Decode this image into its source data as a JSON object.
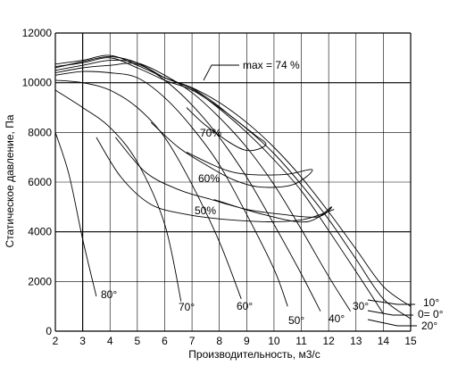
{
  "chart_data": {
    "type": "line",
    "xlabel": "Производительность, м3/с",
    "ylabel": "Статическое давление, Па",
    "xlim": [
      2,
      15
    ],
    "ylim": [
      0,
      12000
    ],
    "x_ticks": [
      2,
      3,
      4,
      5,
      6,
      7,
      8,
      9,
      10,
      11,
      12,
      13,
      14,
      15
    ],
    "y_ticks": [
      0,
      2000,
      4000,
      6000,
      8000,
      10000,
      12000
    ],
    "y_tick_labels": [
      "0",
      "2000",
      "4000",
      "6000",
      "8000",
      "10000",
      "12000"
    ],
    "grid": true,
    "major_gridlines": {
      "x": [
        3
      ],
      "y": [
        4000,
        10000
      ]
    },
    "series": [
      {
        "name": "10°",
        "x": [
          2,
          3,
          4,
          5,
          6,
          7,
          8,
          9,
          10,
          11,
          12,
          13,
          14,
          15
        ],
        "values": [
          10750,
          10900,
          11100,
          10700,
          10200,
          9800,
          9200,
          8400,
          7400,
          6200,
          4800,
          3300,
          1800,
          1000
        ]
      },
      {
        "name": "0= 0°",
        "x": [
          2,
          3,
          4,
          5,
          6,
          7,
          8,
          9,
          10,
          11,
          12,
          13,
          14,
          15
        ],
        "values": [
          10650,
          10800,
          11000,
          10600,
          10100,
          9700,
          9000,
          8150,
          7150,
          5900,
          4500,
          2900,
          1300,
          500
        ]
      },
      {
        "name": "20°",
        "x": [
          2,
          3,
          4,
          5,
          6,
          7,
          8,
          9,
          10,
          11,
          12,
          13,
          14
        ],
        "values": [
          10600,
          10850,
          11050,
          10800,
          10200,
          9750,
          8950,
          8000,
          6900,
          5650,
          4050,
          2400,
          700
        ]
      },
      {
        "name": "30°",
        "x": [
          2,
          3,
          4,
          5,
          6,
          7,
          8,
          9,
          10,
          11,
          12,
          12.8
        ],
        "values": [
          10500,
          10700,
          10900,
          10800,
          10300,
          9600,
          8600,
          7400,
          5900,
          4100,
          2200,
          800
        ]
      },
      {
        "name": "40°",
        "x": [
          2,
          3,
          4,
          5,
          6,
          7,
          8,
          9,
          10,
          11,
          11.7
        ],
        "values": [
          10400,
          10600,
          10700,
          10750,
          10100,
          9100,
          7800,
          6200,
          4300,
          2300,
          800
        ]
      },
      {
        "name": "50°",
        "x": [
          2,
          3,
          4,
          5,
          6,
          7,
          8,
          9,
          10,
          10.5
        ],
        "values": [
          10300,
          10450,
          10400,
          10200,
          9400,
          8200,
          6700,
          4700,
          2500,
          1000
        ]
      },
      {
        "name": "60°",
        "x": [
          2,
          3,
          4,
          5,
          6,
          7,
          8,
          8.8
        ],
        "values": [
          10100,
          10000,
          9700,
          9000,
          7800,
          5900,
          3600,
          1300
        ]
      },
      {
        "name": "70°",
        "x": [
          2,
          3,
          4,
          5,
          6,
          6.6
        ],
        "values": [
          9700,
          9000,
          8200,
          6800,
          4300,
          1200
        ]
      },
      {
        "name": "80°",
        "x": [
          2,
          2.5,
          3,
          3.5
        ],
        "values": [
          8000,
          6300,
          3700,
          1400
        ]
      }
    ],
    "efficiency_curves": [
      {
        "label": "max = 74 %",
        "x": [
          7.0,
          7.8,
          8.6,
          9.3,
          9.7,
          8.9,
          7.6,
          6.8
        ],
        "values": [
          9800,
          9200,
          8500,
          7900,
          7500,
          7300,
          8200,
          9000
        ]
      },
      {
        "label": "70%",
        "x": [
          5.5,
          6.5,
          7.5,
          8.5,
          9.5,
          10.7,
          11.4,
          10.3,
          8.5,
          6.8
        ],
        "values": [
          8400,
          7400,
          6700,
          6100,
          5800,
          5900,
          6500,
          6300,
          6400,
          7200
        ]
      },
      {
        "label": "60%",
        "x": [
          4.2,
          5.3,
          6.5,
          7.7,
          9.0,
          10.3,
          11.6,
          12.1,
          11.2,
          9.6,
          7.8
        ],
        "values": [
          7800,
          6400,
          5700,
          5300,
          4900,
          4700,
          4600,
          5000,
          4400,
          4700,
          5300
        ]
      },
      {
        "label": "50%",
        "x": [
          3.5,
          4.4,
          5.5,
          6.8,
          8.2,
          9.8,
          11.1,
          12.2
        ],
        "values": [
          7800,
          6200,
          5100,
          4700,
          4500,
          4400,
          4500,
          4900
        ]
      }
    ],
    "annotations": [
      "max = 74 %",
      "70%",
      "60%",
      "50%",
      "80°",
      "70°",
      "60°",
      "50°",
      "40°",
      "30°",
      "10°",
      "0= 0°",
      "20°"
    ]
  }
}
